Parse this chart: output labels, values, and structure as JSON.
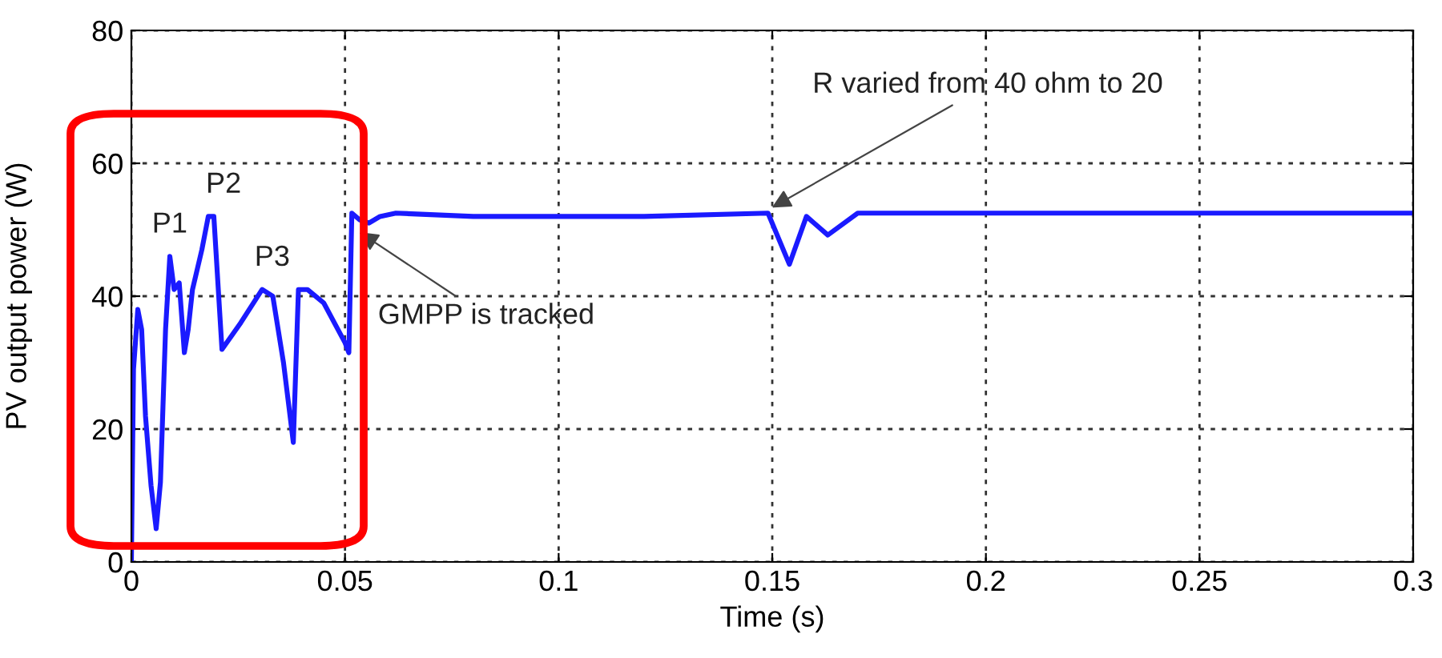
{
  "chart_data": {
    "type": "line",
    "xlabel": "Time (s)",
    "ylabel": "PV output power (W)",
    "xlim": [
      0,
      0.3
    ],
    "xticks": [
      0,
      0.05,
      0.1,
      0.15,
      0.2,
      0.25,
      0.3
    ],
    "ylim": [
      0,
      80
    ],
    "yticks": [
      0,
      20,
      40,
      60,
      80
    ],
    "grid": true,
    "line_style": "solid",
    "marker": "none",
    "series": [
      {
        "color": "#1a1aff",
        "x": [
          0,
          0.0005,
          0.0015,
          0.0024,
          0.0033,
          0.0046,
          0.0058,
          0.0068,
          0.008,
          0.009,
          0.01,
          0.0112,
          0.0124,
          0.0133,
          0.0143,
          0.0165,
          0.018,
          0.0193,
          0.0212,
          0.0256,
          0.0306,
          0.0331,
          0.0356,
          0.0379,
          0.0391,
          0.0412,
          0.045,
          0.05,
          0.0509,
          0.0516,
          0.0534,
          0.0556,
          0.0582,
          0.0619,
          0.08,
          0.1,
          0.12,
          0.149,
          0.154,
          0.158,
          0.163,
          0.17,
          0.2,
          0.25,
          0.3
        ],
        "values": [
          0,
          29,
          38,
          35,
          22,
          11.5,
          5,
          12,
          35,
          46,
          41,
          42,
          31.5,
          35,
          41,
          47,
          52,
          52,
          32,
          36,
          41,
          40,
          30,
          18,
          41,
          41,
          39,
          33,
          31.5,
          52.5,
          51.5,
          51,
          52,
          52.5,
          52,
          52,
          52,
          52.5,
          44.8,
          52,
          49.2,
          52.5,
          52.5,
          52.5,
          52.5
        ]
      }
    ],
    "annotations": [
      {
        "text": "P1",
        "x": 0.009,
        "y": 46
      },
      {
        "text": "P2",
        "x": 0.019,
        "y": 52
      },
      {
        "text": "P3",
        "x": 0.033,
        "y": 41
      },
      {
        "text": "GMPP is tracked",
        "x": 0.0525,
        "y": 50
      },
      {
        "text": "R varied from 40 ohm to 20",
        "x": 0.149,
        "y": 53
      }
    ]
  }
}
